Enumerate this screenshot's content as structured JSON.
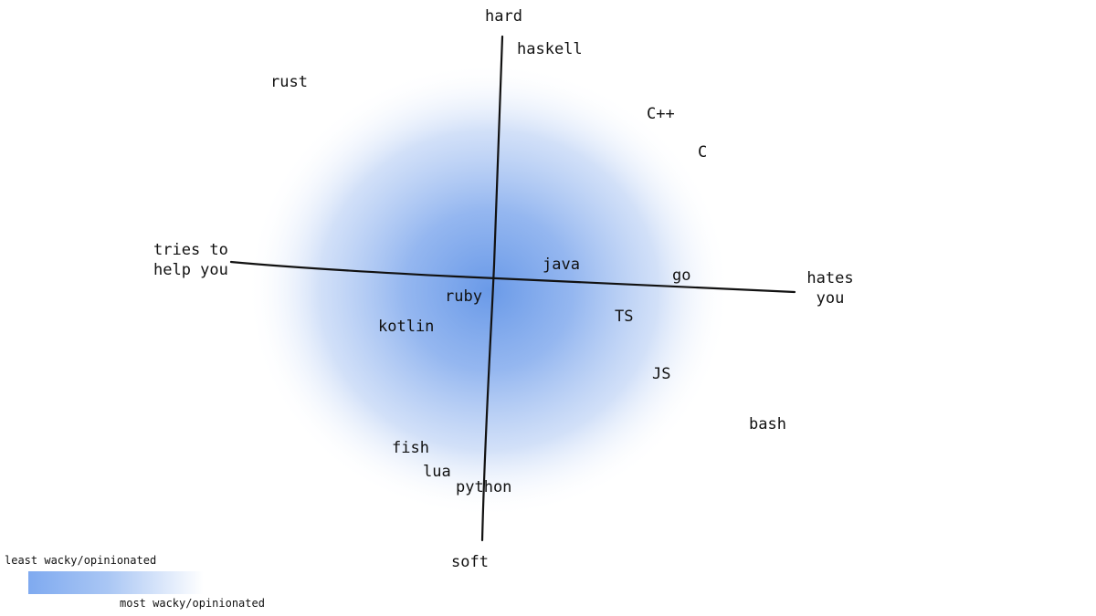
{
  "axes": {
    "top": "hard",
    "bottom": "soft",
    "left_line1": "tries to",
    "left_line2": "help you",
    "right_line1": "hates",
    "right_line2": "you"
  },
  "languages": {
    "haskell": "haskell",
    "rust": "rust",
    "cpp": "C++",
    "c": "C",
    "java": "java",
    "go": "go",
    "ruby": "ruby",
    "ts": "TS",
    "kotlin": "kotlin",
    "js": "JS",
    "bash": "bash",
    "fish": "fish",
    "lua": "lua",
    "python": "python"
  },
  "legend": {
    "min_label": "least wacky/opinionated",
    "max_label": "most wacky/opinionated"
  },
  "colors": {
    "center": "#6a9ae8",
    "edge": "#ffffff",
    "ink": "#111111"
  }
}
